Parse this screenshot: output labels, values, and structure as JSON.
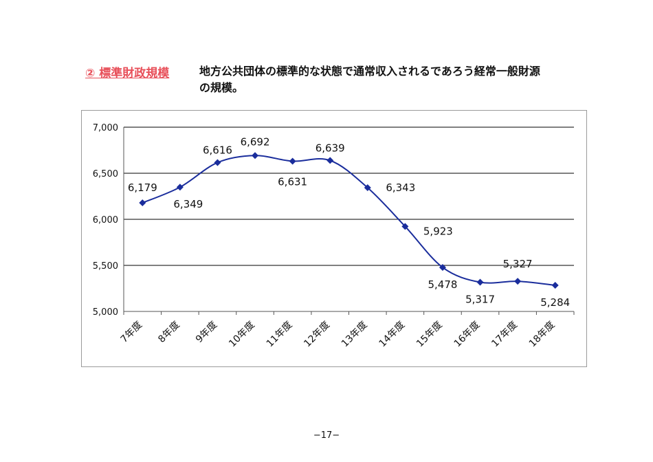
{
  "page": {
    "section_label": "② 標準財政規模",
    "description": "地方公共団体の標準的な状態で通常収入されるであろう経常一般財源の規模。",
    "page_number": "−17−"
  },
  "colors": {
    "section_label": "#e8505a",
    "series": "#1a2d9c",
    "grid": "#000000"
  },
  "chart_data": {
    "type": "line",
    "title": "",
    "xlabel": "",
    "ylabel": "",
    "categories": [
      "7年度",
      "8年度",
      "9年度",
      "10年度",
      "11年度",
      "12年度",
      "13年度",
      "14年度",
      "15年度",
      "16年度",
      "17年度",
      "18年度"
    ],
    "series": [
      {
        "values": [
          6179,
          6349,
          6616,
          6692,
          6631,
          6639,
          6343,
          5923,
          5478,
          5317,
          5327,
          5284
        ],
        "data_labels": [
          "6,179",
          "6,349",
          "6,616",
          "6,692",
          "6,631",
          "6,639",
          "6,343",
          "5,923",
          "5,478",
          "5,317",
          "5,327",
          "5,284"
        ]
      }
    ],
    "ylim": [
      5000,
      7000
    ],
    "yticks": [
      5000,
      5500,
      6000,
      6500,
      7000
    ],
    "ytick_labels": [
      "5,000",
      "5,500",
      "6,000",
      "6,500",
      "7,000"
    ],
    "grid": true,
    "marker": "diamond",
    "smooth": true,
    "legend": "none"
  }
}
